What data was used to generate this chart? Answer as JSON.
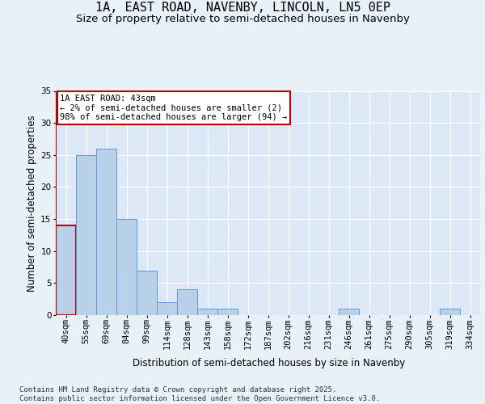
{
  "title_line1": "1A, EAST ROAD, NAVENBY, LINCOLN, LN5 0EP",
  "title_line2": "Size of property relative to semi-detached houses in Navenby",
  "xlabel": "Distribution of semi-detached houses by size in Navenby",
  "ylabel": "Number of semi-detached properties",
  "categories": [
    "40sqm",
    "55sqm",
    "69sqm",
    "84sqm",
    "99sqm",
    "114sqm",
    "128sqm",
    "143sqm",
    "158sqm",
    "172sqm",
    "187sqm",
    "202sqm",
    "216sqm",
    "231sqm",
    "246sqm",
    "261sqm",
    "275sqm",
    "290sqm",
    "305sqm",
    "319sqm",
    "334sqm"
  ],
  "values": [
    14,
    25,
    26,
    15,
    7,
    2,
    4,
    1,
    1,
    0,
    0,
    0,
    0,
    0,
    1,
    0,
    0,
    0,
    0,
    1,
    0
  ],
  "bar_color": "#b8d0e8",
  "bar_edgecolor": "#5b9bd5",
  "highlight_index": 0,
  "highlight_bar_edgecolor": "#c00000",
  "annotation_box_text": "1A EAST ROAD: 43sqm\n← 2% of semi-detached houses are smaller (2)\n98% of semi-detached houses are larger (94) →",
  "annotation_box_edgecolor": "#c00000",
  "annotation_box_facecolor": "#ffffff",
  "ylim": [
    0,
    35
  ],
  "yticks": [
    0,
    5,
    10,
    15,
    20,
    25,
    30,
    35
  ],
  "bg_color": "#e8f0f8",
  "plot_bg_color": "#dce8f5",
  "footer_text": "Contains HM Land Registry data © Crown copyright and database right 2025.\nContains public sector information licensed under the Open Government Licence v3.0.",
  "title_fontsize": 11,
  "subtitle_fontsize": 9.5,
  "axis_label_fontsize": 8.5,
  "tick_fontsize": 7.5,
  "annotation_fontsize": 7.5,
  "footer_fontsize": 6.5
}
